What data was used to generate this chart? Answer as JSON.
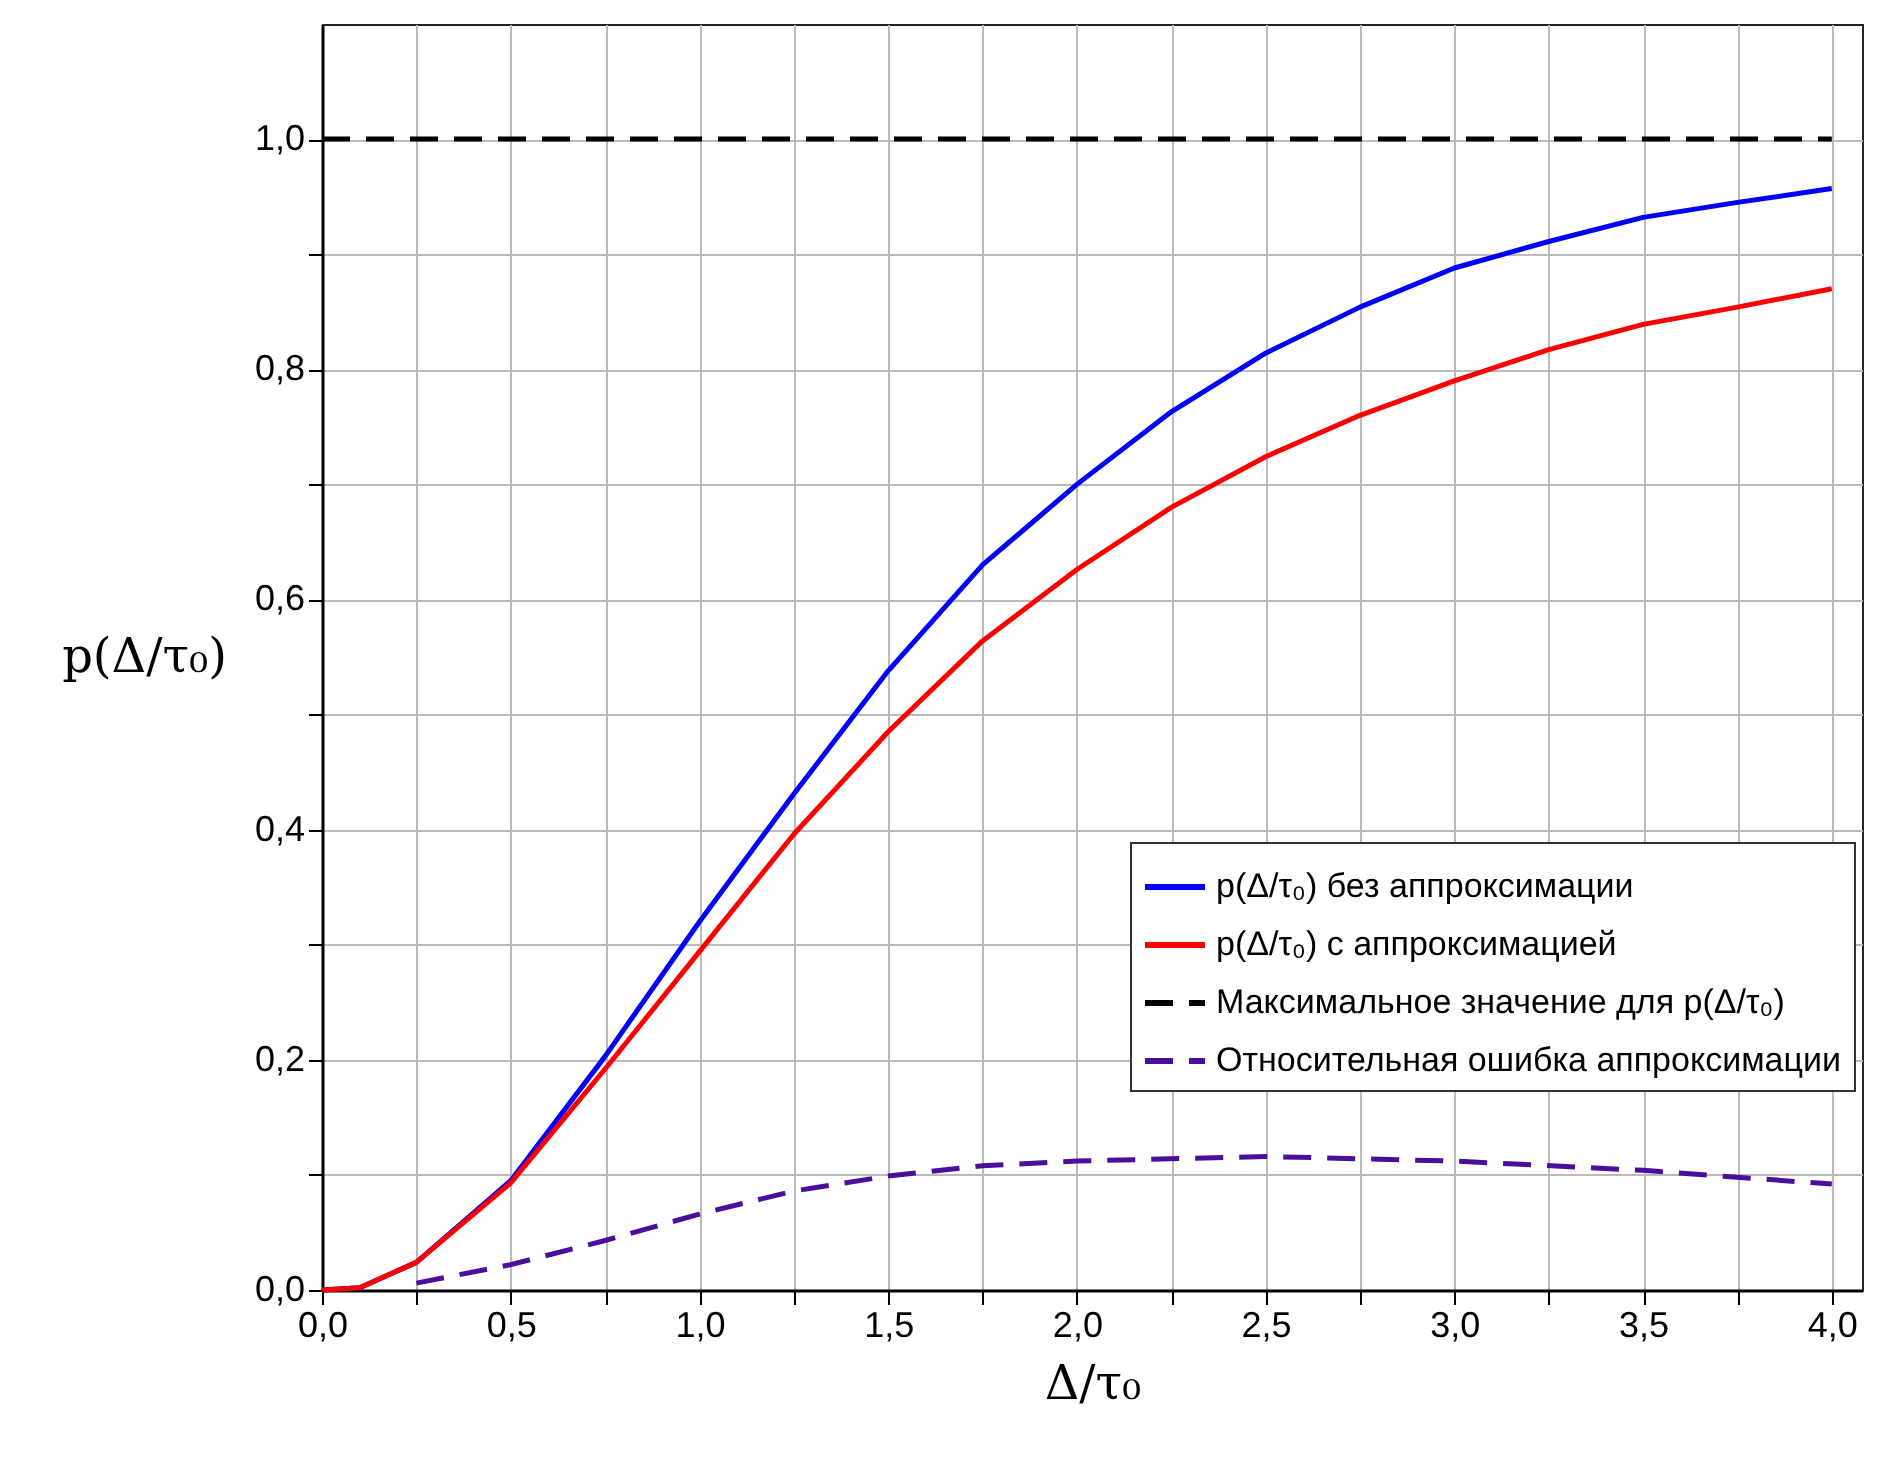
{
  "chart_data": {
    "type": "line",
    "xlabel": "Δ/τ₀",
    "ylabel": "p(Δ/τ₀)",
    "x": [
      0,
      0.1,
      0.25,
      0.5,
      0.75,
      1.0,
      1.25,
      1.5,
      1.75,
      2.0,
      2.25,
      2.5,
      2.75,
      3.0,
      3.25,
      3.5,
      3.75,
      4.0
    ],
    "series": [
      {
        "name": "p(Δ/τ₀) без аппроксимации",
        "color": "#0000ff",
        "values": [
          0,
          0.002,
          0.024,
          0.095,
          0.203,
          0.32,
          0.431,
          0.538,
          0.63,
          0.7,
          0.763,
          0.814,
          0.854,
          0.888,
          0.911,
          0.932,
          0.945,
          0.957
        ]
      },
      {
        "name": "p(Δ/τ₀) с аппроксимацией",
        "color": "#ff0000",
        "values": [
          0,
          0.002,
          0.024,
          0.093,
          0.192,
          0.294,
          0.396,
          0.485,
          0.564,
          0.626,
          0.68,
          0.724,
          0.76,
          0.79,
          0.817,
          0.839,
          0.854,
          0.87
        ]
      },
      {
        "name": "Максимальное значение для p(Δ/τ₀)",
        "color": "#000000",
        "line_style": "dashed",
        "x": [
          0,
          4.0
        ],
        "values": [
          1.0,
          1.0
        ]
      },
      {
        "name": "Относительная ошибка аппроксимации",
        "color": "#4b0d9c",
        "line_style": "dashed",
        "x": [
          0.25,
          0.5,
          0.75,
          1.0,
          1.25,
          1.5,
          1.75,
          2.0,
          2.5,
          3.0,
          3.5,
          4.0
        ],
        "values": [
          0.006,
          0.022,
          0.043,
          0.066,
          0.086,
          0.099,
          0.108,
          0.112,
          0.116,
          0.112,
          0.104,
          0.092
        ]
      }
    ],
    "xlim": [
      0,
      4.08
    ],
    "ylim": [
      0,
      1.1
    ],
    "xticks": [
      {
        "value": 0,
        "label": "0,0"
      },
      {
        "value": 0.25,
        "label": null
      },
      {
        "value": 0.5,
        "label": "0,5"
      },
      {
        "value": 0.75,
        "label": null
      },
      {
        "value": 1.0,
        "label": "1,0"
      },
      {
        "value": 1.25,
        "label": null
      },
      {
        "value": 1.5,
        "label": "1,5"
      },
      {
        "value": 1.75,
        "label": null
      },
      {
        "value": 2.0,
        "label": "2,0"
      },
      {
        "value": 2.25,
        "label": null
      },
      {
        "value": 2.5,
        "label": "2,5"
      },
      {
        "value": 2.75,
        "label": null
      },
      {
        "value": 3.0,
        "label": "3,0"
      },
      {
        "value": 3.25,
        "label": null
      },
      {
        "value": 3.5,
        "label": "3,5"
      },
      {
        "value": 3.75,
        "label": null
      },
      {
        "value": 4.0,
        "label": "4,0"
      }
    ],
    "yticks": [
      {
        "value": 0,
        "label": "0,0"
      },
      {
        "value": 0.1,
        "label": null
      },
      {
        "value": 0.2,
        "label": "0,2"
      },
      {
        "value": 0.3,
        "label": null
      },
      {
        "value": 0.4,
        "label": "0,4"
      },
      {
        "value": 0.5,
        "label": null
      },
      {
        "value": 0.6,
        "label": "0,6"
      },
      {
        "value": 0.7,
        "label": null
      },
      {
        "value": 0.8,
        "label": "0,8"
      },
      {
        "value": 0.9,
        "label": null
      },
      {
        "value": 1.0,
        "label": "1,0"
      }
    ],
    "grid": true,
    "legend": "bottom right",
    "line_style": "solid"
  }
}
